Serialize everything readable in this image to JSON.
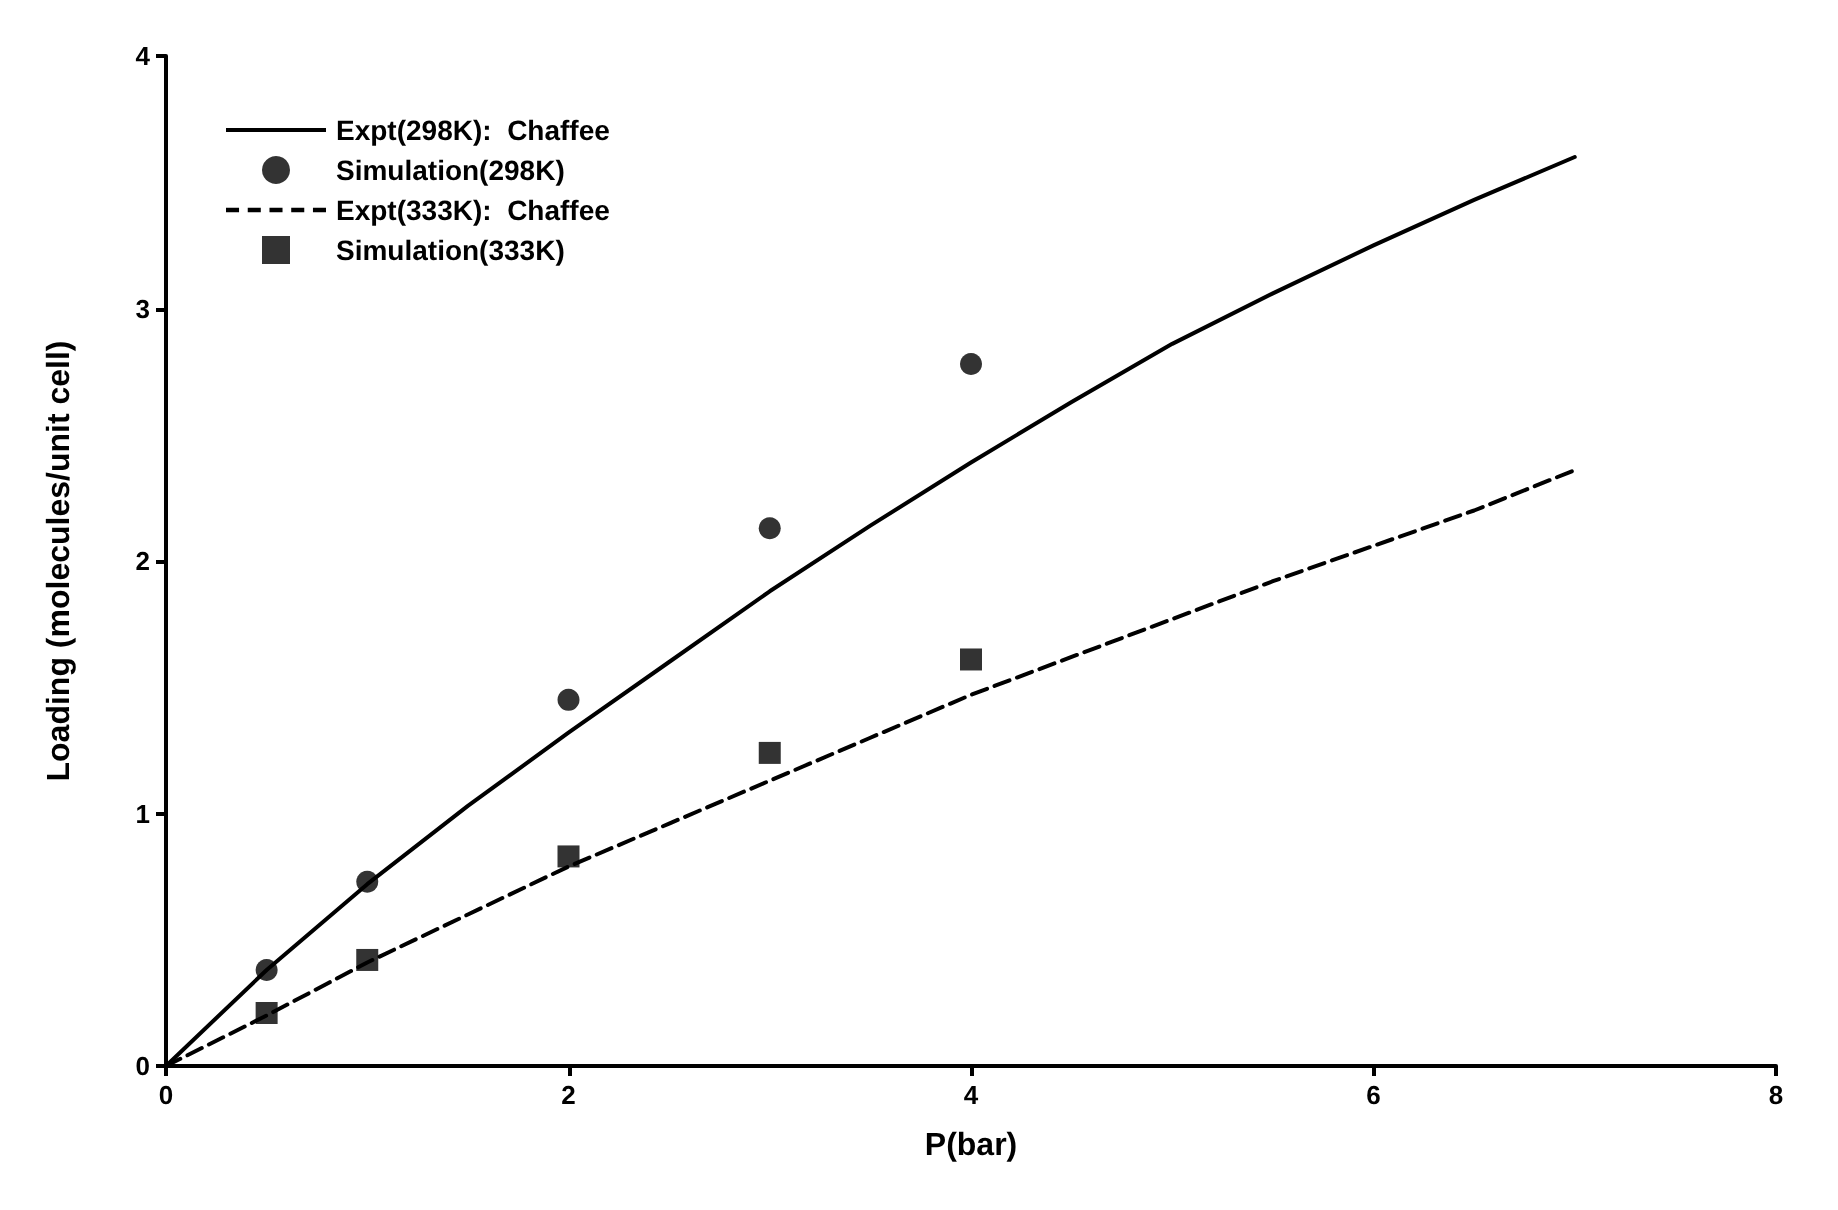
{
  "chart_data": {
    "type": "line",
    "xlabel": "P(bar)",
    "ylabel": "Loading (molecules/unit cell)",
    "xlim": [
      0,
      8
    ],
    "xticks": [
      0,
      2,
      4,
      6,
      8
    ],
    "ylim": [
      0,
      4
    ],
    "yticks": [
      0,
      1,
      2,
      3,
      4
    ],
    "grid": false,
    "legend": "top left",
    "series": [
      {
        "name": "Expt(298K):  Chaffee",
        "line_style": "solid",
        "marker": "none",
        "color": "#000000",
        "x": [
          0,
          0.5,
          1,
          1.5,
          2,
          2.5,
          3,
          3.5,
          4,
          4.5,
          5,
          5.5,
          6,
          6.5,
          7
        ],
        "values": [
          0,
          0.38,
          0.72,
          1.03,
          1.32,
          1.6,
          1.88,
          2.14,
          2.39,
          2.63,
          2.86,
          3.06,
          3.25,
          3.43,
          3.6
        ]
      },
      {
        "name": "Simulation(298K)",
        "type": "scatter",
        "marker": "circle",
        "color": "#000000",
        "x": [
          0.5,
          1,
          2,
          3,
          4
        ],
        "values": [
          0.38,
          0.73,
          1.45,
          2.13,
          2.78
        ]
      },
      {
        "name": "Expt(333K):  Chaffee",
        "line_style": "dashed",
        "marker": "none",
        "color": "#000000",
        "x": [
          0,
          0.5,
          1,
          1.5,
          2,
          2.5,
          3,
          3.5,
          4,
          4.5,
          5,
          5.5,
          6,
          6.5,
          7
        ],
        "values": [
          0,
          0.2,
          0.41,
          0.6,
          0.79,
          0.96,
          1.13,
          1.3,
          1.47,
          1.62,
          1.77,
          1.92,
          2.06,
          2.2,
          2.36
        ]
      },
      {
        "name": "Simulation(333K)",
        "type": "scatter",
        "marker": "square",
        "color": "#000000",
        "x": [
          0.5,
          1,
          2,
          3,
          4
        ],
        "values": [
          0.21,
          0.42,
          0.83,
          1.24,
          1.61
        ]
      }
    ]
  }
}
